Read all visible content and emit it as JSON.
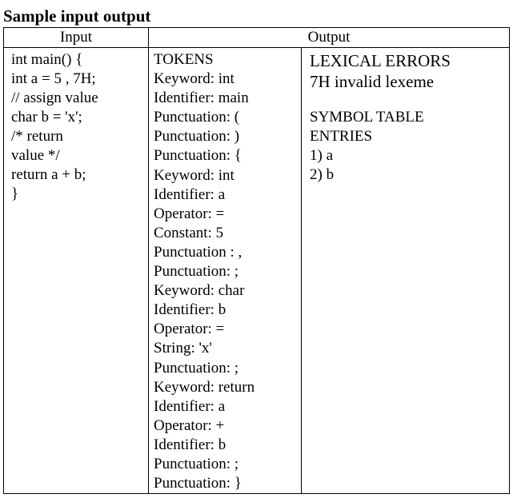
{
  "title": "Sample input output",
  "headers": {
    "input": "Input",
    "output": "Output"
  },
  "input_lines": [
    "int main() {",
    "int a = 5 , 7H;",
    "// assign value",
    "char b = 'x';",
    "/* return",
    "value */",
    "return a + b;",
    "}"
  ],
  "token_lines": [
    "TOKENS",
    "Keyword: int",
    "Identifier: main",
    "Punctuation: (",
    "Punctuation: )",
    "Punctuation: {",
    "Keyword: int",
    "Identifier: a",
    "Operator: =",
    "Constant: 5",
    "Punctuation : ,",
    "Punctuation: ;",
    "Keyword: char",
    "Identifier: b",
    "Operator: =",
    "String: 'x'",
    "Punctuation: ;",
    "Keyword: return",
    "Identifier: a",
    "Operator: +",
    "Identifier: b",
    "Punctuation: ;",
    "Punctuation: }"
  ],
  "errors": {
    "heading": "LEXICAL ERRORS",
    "items": [
      "7H invalid lexeme"
    ]
  },
  "symbol_table": {
    "heading_line1": "SYMBOL TABLE",
    "heading_line2": "ENTRIES",
    "entries": [
      "1) a",
      "2) b"
    ]
  }
}
